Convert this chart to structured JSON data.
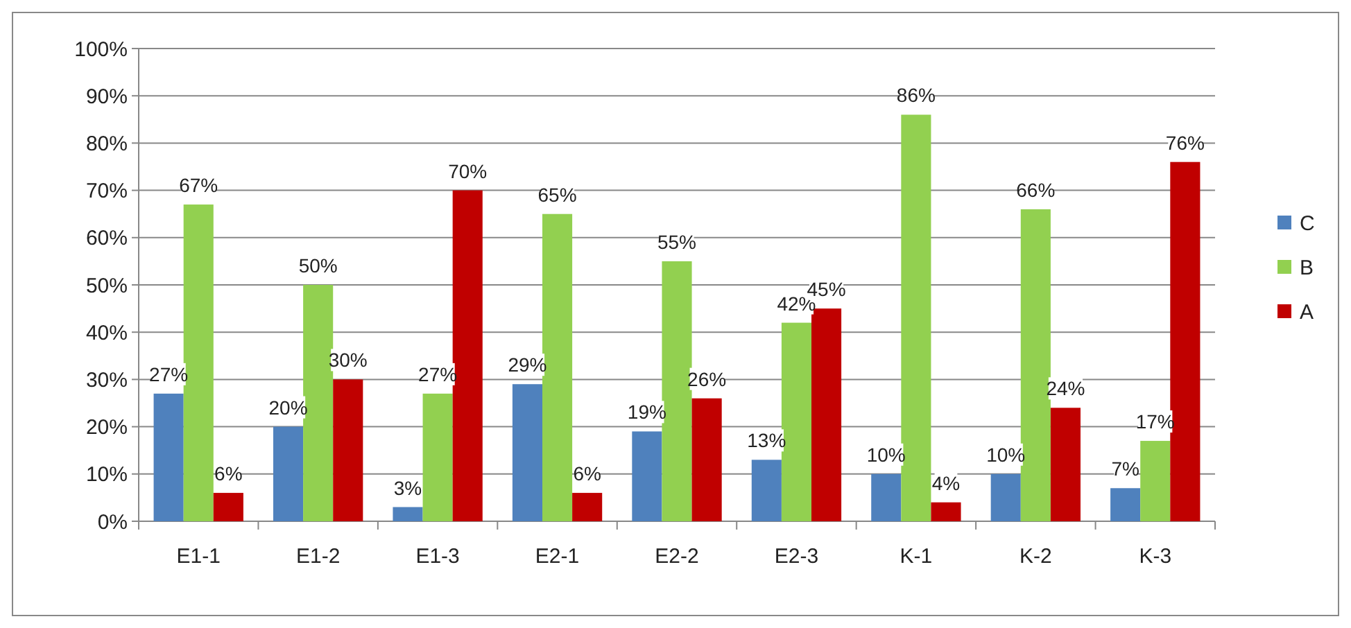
{
  "chart_data": {
    "type": "bar",
    "categories": [
      "E1-1",
      "E1-2",
      "E1-3",
      "E2-1",
      "E2-2",
      "E2-3",
      "K-1",
      "K-2",
      "K-3"
    ],
    "series": [
      {
        "name": "C",
        "color": "#4f81bd",
        "values": [
          27,
          20,
          3,
          29,
          19,
          13,
          10,
          10,
          7
        ],
        "value_labels": [
          "27%",
          "20%",
          "3%",
          "29%",
          "19%",
          "13%",
          "10%",
          "10%",
          "7%"
        ]
      },
      {
        "name": "B",
        "color": "#92d050",
        "values": [
          67,
          50,
          27,
          65,
          55,
          42,
          86,
          66,
          17
        ],
        "value_labels": [
          "67%",
          "50%",
          "27%",
          "65%",
          "55%",
          "42%",
          "86%",
          "66%",
          "17%"
        ]
      },
      {
        "name": "A",
        "color": "#c00000",
        "values": [
          6,
          30,
          70,
          6,
          26,
          45,
          4,
          24,
          76
        ],
        "value_labels": [
          "6%",
          "30%",
          "70%",
          "6%",
          "26%",
          "45%",
          "4%",
          "24%",
          "76%"
        ]
      }
    ],
    "ylim": [
      0,
      100
    ],
    "yticks": [
      {
        "value": 0,
        "label": "0%"
      },
      {
        "value": 10,
        "label": "10%"
      },
      {
        "value": 20,
        "label": "20%"
      },
      {
        "value": 30,
        "label": "30%"
      },
      {
        "value": 40,
        "label": "40%"
      },
      {
        "value": 50,
        "label": "50%"
      },
      {
        "value": 60,
        "label": "60%"
      },
      {
        "value": 70,
        "label": "70%"
      },
      {
        "value": 80,
        "label": "80%"
      },
      {
        "value": 90,
        "label": "90%"
      },
      {
        "value": 100,
        "label": "100%"
      }
    ],
    "grid": "y",
    "legend": "right"
  }
}
